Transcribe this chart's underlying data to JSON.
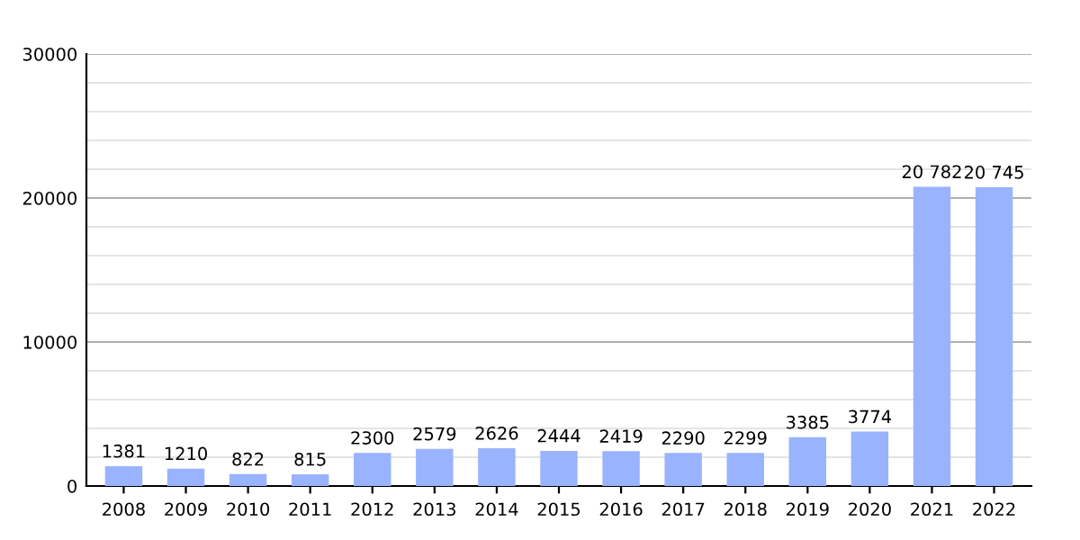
{
  "chart_data": {
    "type": "bar",
    "categories": [
      "2008",
      "2009",
      "2010",
      "2011",
      "2012",
      "2013",
      "2014",
      "2015",
      "2016",
      "2017",
      "2018",
      "2019",
      "2020",
      "2021",
      "2022"
    ],
    "values": [
      1381,
      1210,
      822,
      815,
      2300,
      2579,
      2626,
      2444,
      2419,
      2290,
      2299,
      3385,
      3774,
      20782,
      20745
    ],
    "value_labels": [
      "1381",
      "1210",
      "822",
      "815",
      "2300",
      "2579",
      "2626",
      "2444",
      "2419",
      "2290",
      "2299",
      "3385",
      "3774",
      "20 782",
      "20 745"
    ],
    "color": "#99b3ff",
    "ylim": [
      0,
      30000
    ],
    "yticks": [
      0,
      {
        "value": 2000,
        "label": null
      },
      {
        "value": 4000,
        "label": null
      },
      {
        "value": 6000,
        "label": null
      },
      {
        "value": 8000,
        "label": null
      },
      10000,
      {
        "value": 12000,
        "label": null
      },
      {
        "value": 14000,
        "label": null
      },
      {
        "value": 16000,
        "label": null
      },
      {
        "value": 18000,
        "label": null
      },
      20000,
      {
        "value": 22000,
        "label": null
      },
      {
        "value": 24000,
        "label": null
      },
      {
        "value": 26000,
        "label": null
      },
      {
        "value": 28000,
        "label": null
      },
      30000
    ],
    "grid": "y"
  }
}
